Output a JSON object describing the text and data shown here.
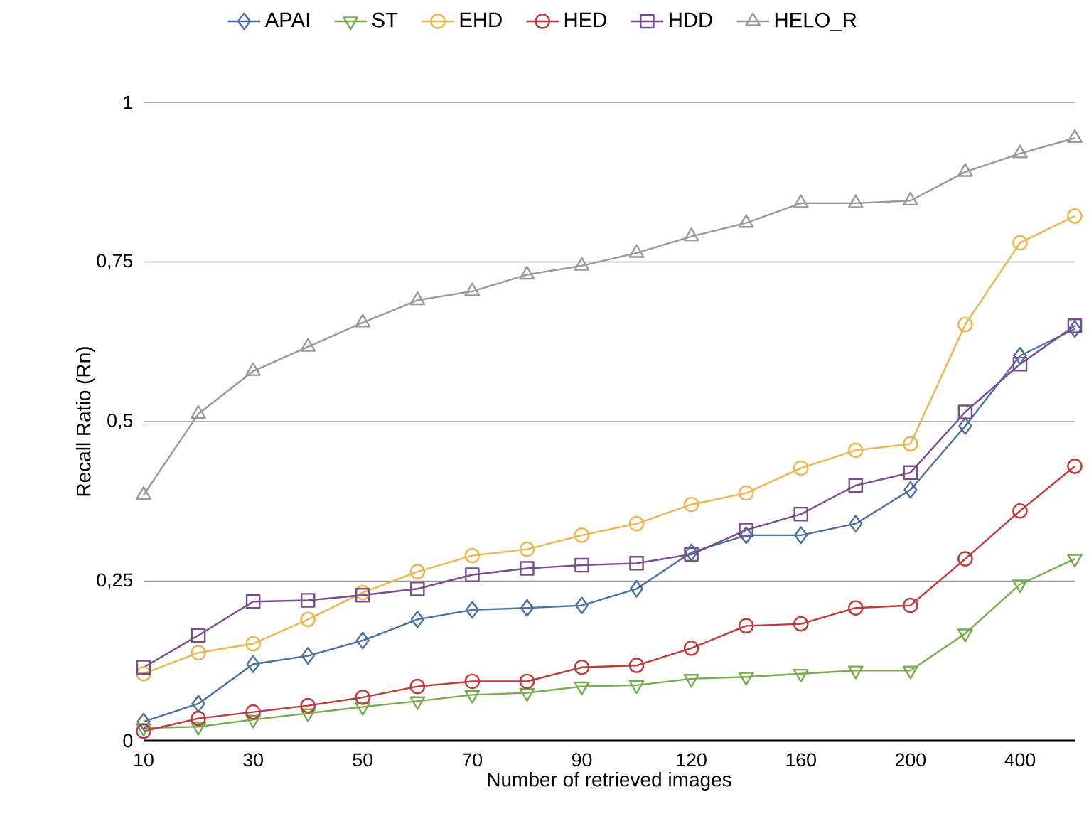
{
  "chart_data": {
    "type": "line",
    "xlabel": "Number of retrieved images",
    "ylabel": "Recall Ratio (Rn)",
    "categories": [
      "10",
      null,
      "30",
      null,
      "50",
      null,
      "70",
      null,
      "90",
      null,
      "120",
      null,
      "160",
      null,
      "200",
      null,
      "400",
      null
    ],
    "ylim": [
      0,
      1
    ],
    "yticks": [
      0,
      {
        "value": 0.25,
        "label": "0,25"
      },
      {
        "value": 0.5,
        "label": "0,5"
      },
      {
        "value": 0.75,
        "label": "0,75"
      },
      1
    ],
    "grid": "y",
    "legend": "top",
    "line_style": "solid",
    "series": [
      {
        "name": "APAI",
        "color": "#4a6fa5",
        "marker": "diamond",
        "values": [
          0.03,
          0.058,
          0.12,
          0.133,
          0.157,
          0.19,
          0.205,
          0.208,
          0.212,
          0.238,
          0.295,
          0.322,
          0.322,
          0.34,
          0.393,
          0.493,
          0.603,
          0.645
        ]
      },
      {
        "name": "ST",
        "color": "#77ac4e",
        "marker": "triangle-down",
        "values": [
          0.02,
          0.022,
          0.033,
          0.043,
          0.053,
          0.062,
          0.072,
          0.075,
          0.085,
          0.087,
          0.097,
          0.1,
          0.105,
          0.11,
          0.11,
          0.168,
          0.245,
          0.285
        ]
      },
      {
        "name": "EHD",
        "color": "#f0b44f",
        "marker": "circle",
        "values": [
          0.105,
          0.138,
          0.152,
          0.19,
          0.232,
          0.265,
          0.29,
          0.3,
          0.322,
          0.34,
          0.37,
          0.388,
          0.427,
          0.455,
          0.465,
          0.652,
          0.78,
          0.822
        ]
      },
      {
        "name": "HED",
        "color": "#c0393b",
        "marker": "circle",
        "values": [
          0.015,
          0.035,
          0.045,
          0.055,
          0.068,
          0.085,
          0.093,
          0.093,
          0.115,
          0.118,
          0.145,
          0.18,
          0.183,
          0.208,
          0.212,
          0.285,
          0.36,
          0.43
        ]
      },
      {
        "name": "HDD",
        "color": "#7a4c8f",
        "marker": "square",
        "values": [
          0.115,
          0.165,
          0.218,
          0.22,
          0.228,
          0.238,
          0.26,
          0.27,
          0.275,
          0.278,
          0.292,
          0.33,
          0.355,
          0.4,
          0.42,
          0.515,
          0.59,
          0.65
        ]
      },
      {
        "name": "HELO_R",
        "color": "#999999",
        "marker": "triangle",
        "values": [
          0.385,
          0.512,
          0.579,
          0.617,
          0.655,
          0.69,
          0.704,
          0.73,
          0.744,
          0.764,
          0.79,
          0.811,
          0.842,
          0.842,
          0.846,
          0.891,
          0.92,
          0.944
        ]
      }
    ]
  }
}
